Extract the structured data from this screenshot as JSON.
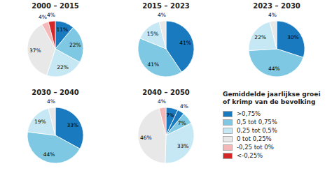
{
  "chart_data": [
    {
      "type": "pie",
      "title": "2000 – 2015",
      "values": [
        11,
        22,
        22,
        37,
        4,
        4
      ],
      "value_labels": [
        "11%",
        "22%",
        "22%",
        "37%",
        "4%",
        "4%"
      ],
      "colors": [
        "#1a7abf",
        "#7ec8e3",
        "#c6e8f5",
        "#e8e8e8",
        "#f5b8b8",
        "#d62728"
      ],
      "data_labels": true
    },
    {
      "type": "pie",
      "title": "2015 – 2023",
      "values": [
        41,
        41,
        15,
        4
      ],
      "value_labels": [
        "41%",
        "41%",
        "15%",
        "4%"
      ],
      "colors": [
        "#1a7abf",
        "#7ec8e3",
        "#c6e8f5",
        "#e8e8e8"
      ],
      "data_labels": true
    },
    {
      "type": "pie",
      "title": "2023 – 2030",
      "values": [
        30,
        44,
        22,
        4
      ],
      "value_labels": [
        "30%",
        "44%",
        "22%",
        "4%"
      ],
      "colors": [
        "#1a7abf",
        "#7ec8e3",
        "#c6e8f5",
        "#e8e8e8"
      ],
      "data_labels": true
    },
    {
      "type": "pie",
      "title": "2030 – 2040",
      "values": [
        33,
        44,
        19,
        4
      ],
      "value_labels": [
        "33%",
        "44%",
        "19%",
        "4%"
      ],
      "colors": [
        "#1a7abf",
        "#7ec8e3",
        "#c6e8f5",
        "#e8e8e8"
      ],
      "data_labels": true
    },
    {
      "type": "pie",
      "title": "2040 – 2050",
      "values": [
        7,
        4,
        7,
        33,
        46,
        4
      ],
      "value_labels": [
        "7%",
        "4%",
        "7%",
        "33%",
        "46%",
        "4%"
      ],
      "colors": [
        "#1a7abf",
        "#1a7abf",
        "#7ec8e3",
        "#c6e8f5",
        "#e8e8e8",
        "#f5b8b8"
      ],
      "data_labels": true
    }
  ],
  "legend": {
    "title": "Gemiddelde jaarlijkse groei of krimp van de bevolking",
    "series": [
      {
        "name": ">0,75%",
        "color": "#1a7abf"
      },
      {
        "name": "0,5 tot 0,75%",
        "color": "#7ec8e3"
      },
      {
        "name": "0,25 tot 0,5%",
        "color": "#c6e8f5"
      },
      {
        "name": "0 tot 0,25%",
        "color": "#e8e8e8"
      },
      {
        "name": "-0,25 tot 0%",
        "color": "#f5b8b8"
      },
      {
        "name": "<-0,25%",
        "color": "#d62728"
      }
    ]
  }
}
